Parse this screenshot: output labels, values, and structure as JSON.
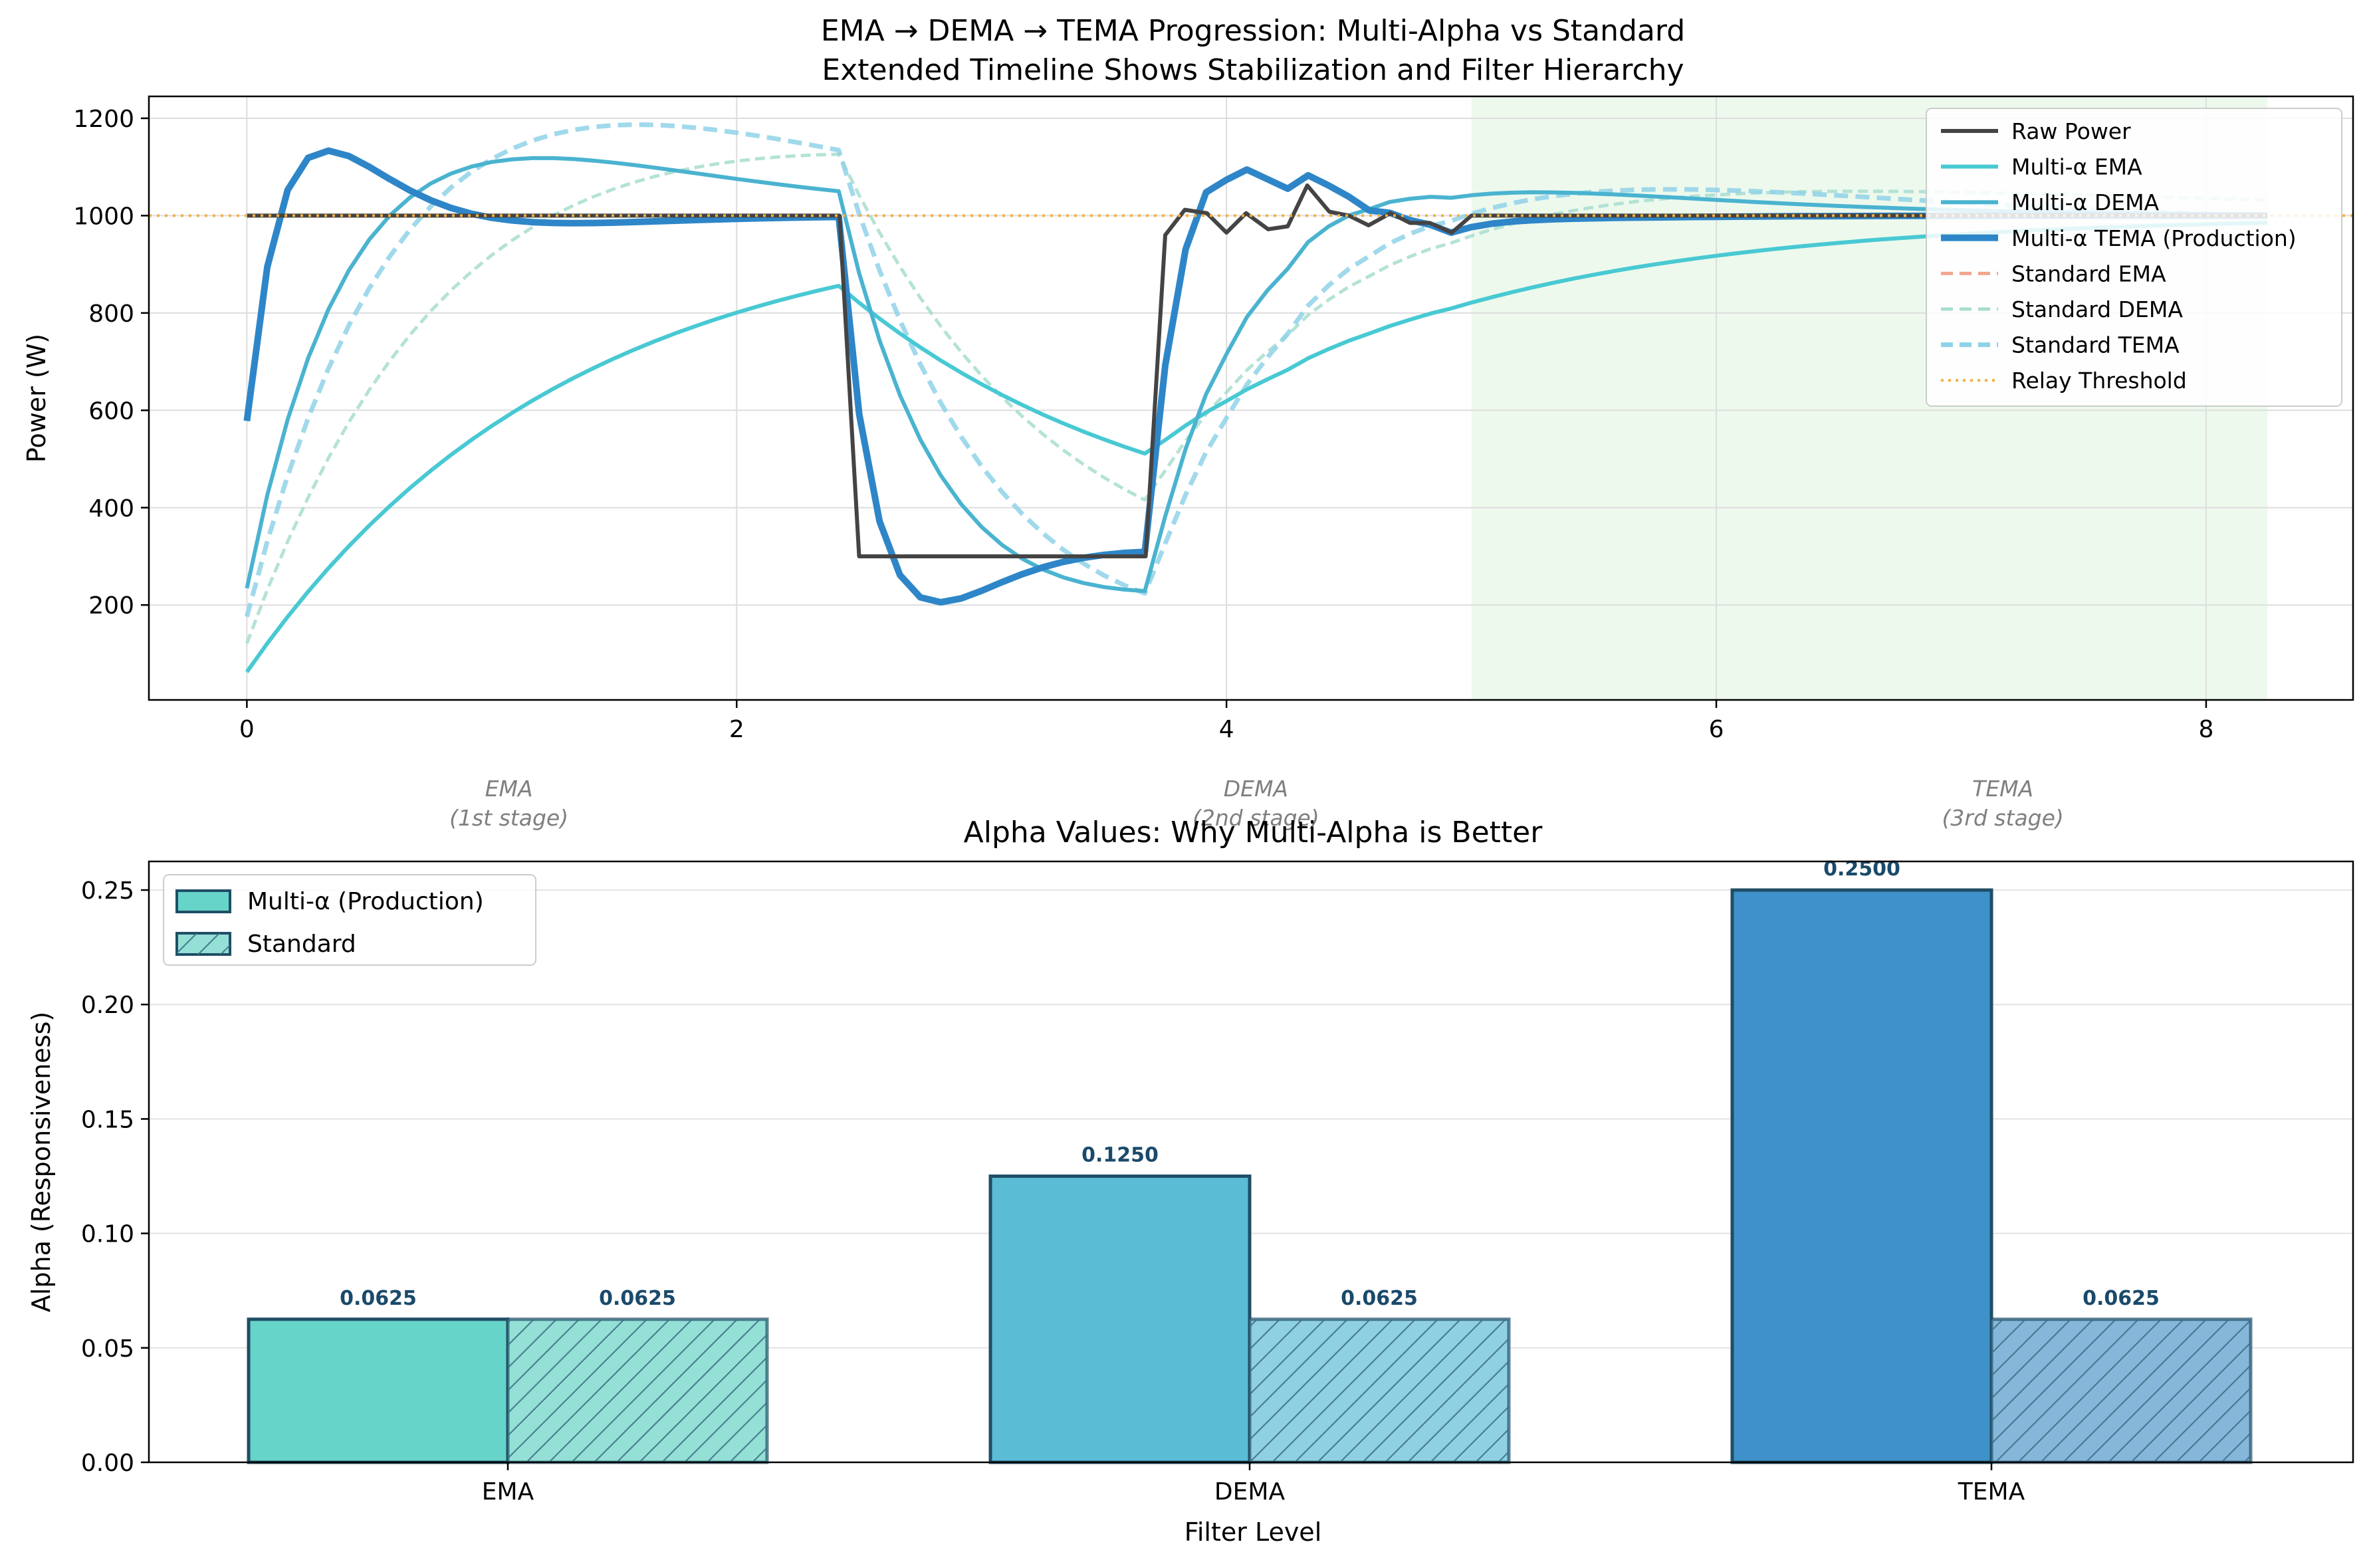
{
  "chart_data": [
    {
      "type": "line",
      "title": "EMA → DEMA → TEMA Progression: Multi-Alpha vs Standard\nExtended Timeline Shows Stabilization and Filter Hierarchy",
      "xlabel": "",
      "ylabel": "Power (W)",
      "xlim": [
        -0.4,
        8.6
      ],
      "ylim": [
        5,
        1245
      ],
      "xticks": [
        0,
        2,
        4,
        6,
        8
      ],
      "yticks": [
        200,
        400,
        600,
        800,
        1000,
        1200
      ],
      "grid": true,
      "legend": "top-right",
      "shaded_region": {
        "x": [
          5,
          8.25
        ],
        "color": "#e6f7e6"
      },
      "threshold": {
        "name": "Relay Threshold",
        "y": 1000,
        "color": "#f5b041"
      },
      "stage_labels": [
        {
          "x": 1.07,
          "text": "EMA\n(1st stage)"
        },
        {
          "x": 4.12,
          "text": "DEMA\n(2nd stage)"
        },
        {
          "x": 7.17,
          "text": "TEMA\n(3rd stage)"
        }
      ],
      "raw": {
        "name": "Raw Power",
        "color": "#444444",
        "points": [
          [
            0,
            1000
          ],
          [
            2.42,
            1000
          ],
          [
            2.5,
            300
          ],
          [
            3.67,
            300
          ],
          [
            3.75,
            960
          ],
          [
            3.83,
            1012
          ],
          [
            3.92,
            1005
          ],
          [
            4.0,
            965
          ],
          [
            4.08,
            1005
          ],
          [
            4.17,
            972
          ],
          [
            4.25,
            978
          ],
          [
            4.33,
            1062
          ],
          [
            4.42,
            1008
          ],
          [
            4.5,
            1000
          ],
          [
            4.58,
            980
          ],
          [
            4.67,
            1005
          ],
          [
            4.75,
            985
          ],
          [
            4.83,
            985
          ],
          [
            4.92,
            965
          ],
          [
            5.0,
            1000
          ],
          [
            8.25,
            1000
          ]
        ]
      },
      "filters": [
        {
          "name": "Multi-α EMA",
          "color": "#48c9d3",
          "dash": "solid",
          "width": 6,
          "alpha": 0.0625,
          "init": 1000
        },
        {
          "name": "Multi-α DEMA",
          "color": "#4ab3d0",
          "dash": "solid",
          "width": 6,
          "alpha": 0.125,
          "init": 1000
        },
        {
          "name": "Multi-α TEMA (Production)",
          "color": "#2e86c8",
          "dash": "solid",
          "width": 10,
          "alpha": 0.25,
          "init": 1000
        },
        {
          "name": "Standard EMA",
          "color": "#f2a58e",
          "dash": "dashed",
          "width": 5,
          "alpha": 0.0625,
          "init": 1000
        },
        {
          "name": "Standard DEMA",
          "color": "#a8ddd0",
          "dash": "dashed",
          "width": 5,
          "alpha": 0.0625,
          "init": 1000
        },
        {
          "name": "Standard TEMA",
          "color": "#8fd2e8",
          "dash": "dashed",
          "width": 7,
          "alpha": 0.0625,
          "init": 1000
        }
      ]
    },
    {
      "type": "bar",
      "title": "Alpha Values: Why Multi-Alpha is Better",
      "xlabel": "Filter Level",
      "ylabel": "Alpha (Responsiveness)",
      "categories": [
        "EMA",
        "DEMA",
        "TEMA"
      ],
      "ylim": [
        0,
        0.2625
      ],
      "yticks": [
        0.0,
        0.05,
        0.1,
        0.15,
        0.2,
        0.25
      ],
      "grid": true,
      "legend": "top-left",
      "series": [
        {
          "name": "Multi-α (Production)",
          "values": [
            0.0625,
            0.125,
            0.25
          ],
          "colors": [
            "#66d4c8",
            "#5bbcd6",
            "#3f92c9"
          ],
          "hatch": false
        },
        {
          "name": "Standard",
          "values": [
            0.0625,
            0.0625,
            0.0625
          ],
          "colors": [
            "#94e0d6",
            "#8fd1e2",
            "#85b7da"
          ],
          "hatch": true
        }
      ],
      "value_labels": {
        "series0": [
          "0.0625",
          "0.1250",
          "0.2500"
        ],
        "series1": [
          "0.0625",
          "0.0625",
          "0.0625"
        ]
      }
    }
  ]
}
